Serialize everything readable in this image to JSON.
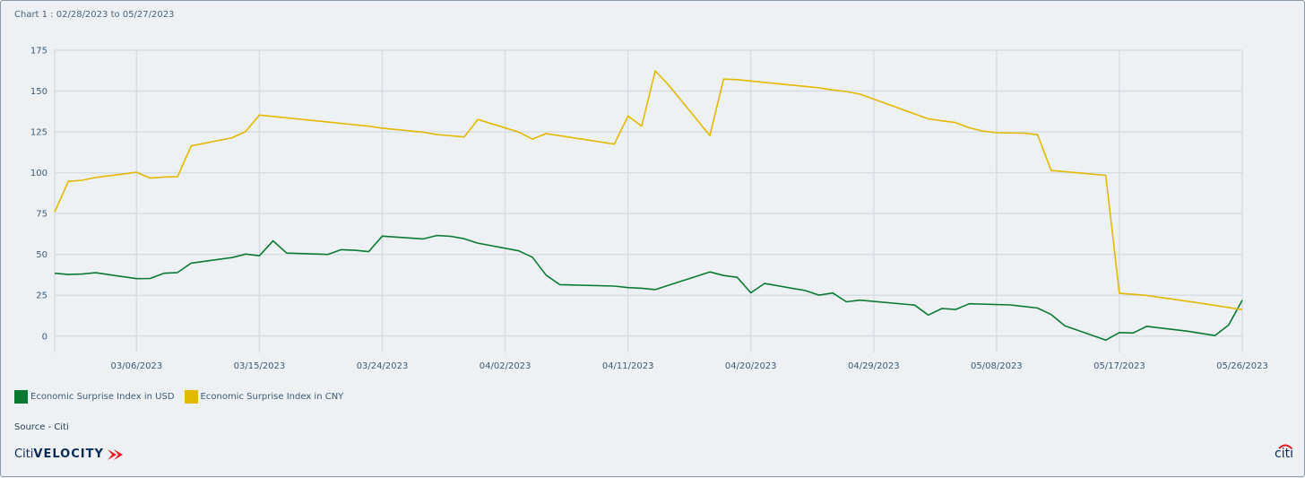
{
  "header": {
    "title": "Chart 1 : 02/28/2023 to 05/27/2023"
  },
  "source": "Source - Citi",
  "brand": {
    "left_a": "Citi",
    "left_b": "VELOCITY",
    "right": "citi"
  },
  "colors": {
    "usd": "#0a7a33",
    "cny": "#e2b800",
    "grid": "#d6dee5",
    "axis_text": "#3c5a78"
  },
  "chart_data": {
    "type": "line",
    "xlabel": "",
    "ylabel": "",
    "x_start": "02/28/2023",
    "x_end": "05/26/2023",
    "x_ticks": [
      "03/06/2023",
      "03/15/2023",
      "03/24/2023",
      "04/02/2023",
      "04/11/2023",
      "04/20/2023",
      "04/29/2023",
      "05/08/2023",
      "05/17/2023",
      "05/26/2023"
    ],
    "ylim": [
      -10,
      175
    ],
    "y_ticks": [
      0,
      25,
      50,
      75,
      100,
      125,
      150,
      175
    ],
    "grid": true,
    "legend_position": "bottom-left",
    "series": [
      {
        "name": "Economic Surprise Index in USD",
        "color": "#0a7a33",
        "points": [
          [
            "02/28/2023",
            38.5
          ],
          [
            "03/01/2023",
            37.7
          ],
          [
            "03/02/2023",
            38.0
          ],
          [
            "03/03/2023",
            38.8
          ],
          [
            "03/06/2023",
            35.2
          ],
          [
            "03/07/2023",
            35.3
          ],
          [
            "03/08/2023",
            38.5
          ],
          [
            "03/09/2023",
            38.9
          ],
          [
            "03/10/2023",
            44.7
          ],
          [
            "03/13/2023",
            48.1
          ],
          [
            "03/14/2023",
            50.2
          ],
          [
            "03/15/2023",
            49.2
          ],
          [
            "03/16/2023",
            58.3
          ],
          [
            "03/17/2023",
            50.8
          ],
          [
            "03/20/2023",
            50.0
          ],
          [
            "03/21/2023",
            52.9
          ],
          [
            "03/22/2023",
            52.5
          ],
          [
            "03/23/2023",
            51.7
          ],
          [
            "03/24/2023",
            61.2
          ],
          [
            "03/27/2023",
            59.5
          ],
          [
            "03/28/2023",
            61.6
          ],
          [
            "03/29/2023",
            61.1
          ],
          [
            "03/30/2023",
            59.6
          ],
          [
            "03/31/2023",
            56.9
          ],
          [
            "04/03/2023",
            52.2
          ],
          [
            "04/04/2023",
            48.3
          ],
          [
            "04/05/2023",
            37.3
          ],
          [
            "04/06/2023",
            31.5
          ],
          [
            "04/10/2023",
            30.6
          ],
          [
            "04/11/2023",
            29.7
          ],
          [
            "04/12/2023",
            29.3
          ],
          [
            "04/13/2023",
            28.5
          ],
          [
            "04/17/2023",
            39.3
          ],
          [
            "04/18/2023",
            37.1
          ],
          [
            "04/19/2023",
            36.0
          ],
          [
            "04/20/2023",
            26.5
          ],
          [
            "04/21/2023",
            32.2
          ],
          [
            "04/24/2023",
            27.9
          ],
          [
            "04/25/2023",
            25.1
          ],
          [
            "04/26/2023",
            26.4
          ],
          [
            "04/27/2023",
            21.0
          ],
          [
            "04/28/2023",
            22.0
          ],
          [
            "05/02/2023",
            19.0
          ],
          [
            "05/03/2023",
            12.9
          ],
          [
            "05/04/2023",
            16.9
          ],
          [
            "05/05/2023",
            16.3
          ],
          [
            "05/06/2023",
            19.8
          ],
          [
            "05/09/2023",
            19.1
          ],
          [
            "05/11/2023",
            17.2
          ],
          [
            "05/12/2023",
            13.2
          ],
          [
            "05/13/2023",
            6.3
          ],
          [
            "05/16/2023",
            -2.5
          ],
          [
            "05/17/2023",
            2.2
          ],
          [
            "05/18/2023",
            1.9
          ],
          [
            "05/19/2023",
            6.0
          ],
          [
            "05/22/2023",
            3.0
          ],
          [
            "05/24/2023",
            0.3
          ],
          [
            "05/25/2023",
            6.8
          ],
          [
            "05/26/2023",
            22.0
          ]
        ]
      },
      {
        "name": "Economic Surprise Index in CNY",
        "color": "#e2b800",
        "points": [
          [
            "02/28/2023",
            76.0
          ],
          [
            "03/01/2023",
            94.7
          ],
          [
            "03/02/2023",
            95.4
          ],
          [
            "03/03/2023",
            97.1
          ],
          [
            "03/06/2023",
            100.3
          ],
          [
            "03/07/2023",
            96.7
          ],
          [
            "03/08/2023",
            97.4
          ],
          [
            "03/09/2023",
            97.6
          ],
          [
            "03/10/2023",
            116.4
          ],
          [
            "03/13/2023",
            121.4
          ],
          [
            "03/14/2023",
            125.3
          ],
          [
            "03/15/2023",
            135.3
          ],
          [
            "03/23/2023",
            128.5
          ],
          [
            "03/24/2023",
            127.3
          ],
          [
            "03/27/2023",
            124.8
          ],
          [
            "03/28/2023",
            123.4
          ],
          [
            "03/30/2023",
            121.9
          ],
          [
            "03/31/2023",
            132.6
          ],
          [
            "04/03/2023",
            124.9
          ],
          [
            "04/04/2023",
            120.6
          ],
          [
            "04/05/2023",
            124.0
          ],
          [
            "04/10/2023",
            117.5
          ],
          [
            "04/11/2023",
            134.7
          ],
          [
            "04/12/2023",
            128.5
          ],
          [
            "04/13/2023",
            162.4
          ],
          [
            "04/14/2023",
            153.5
          ],
          [
            "04/17/2023",
            122.8
          ],
          [
            "04/18/2023",
            157.3
          ],
          [
            "04/19/2023",
            157.0
          ],
          [
            "04/25/2023",
            152.0
          ],
          [
            "04/26/2023",
            150.6
          ],
          [
            "04/27/2023",
            149.7
          ],
          [
            "04/28/2023",
            148.1
          ],
          [
            "05/03/2023",
            133.0
          ],
          [
            "05/04/2023",
            131.8
          ],
          [
            "05/05/2023",
            130.7
          ],
          [
            "05/06/2023",
            127.5
          ],
          [
            "05/07/2023",
            125.5
          ],
          [
            "05/08/2023",
            124.5
          ],
          [
            "05/10/2023",
            124.3
          ],
          [
            "05/11/2023",
            123.3
          ],
          [
            "05/12/2023",
            101.4
          ],
          [
            "05/16/2023",
            98.4
          ],
          [
            "05/17/2023",
            26.2
          ],
          [
            "05/18/2023",
            25.6
          ],
          [
            "05/19/2023",
            24.9
          ],
          [
            "05/23/2023",
            20.1
          ],
          [
            "05/26/2023",
            16.2
          ]
        ]
      }
    ]
  }
}
